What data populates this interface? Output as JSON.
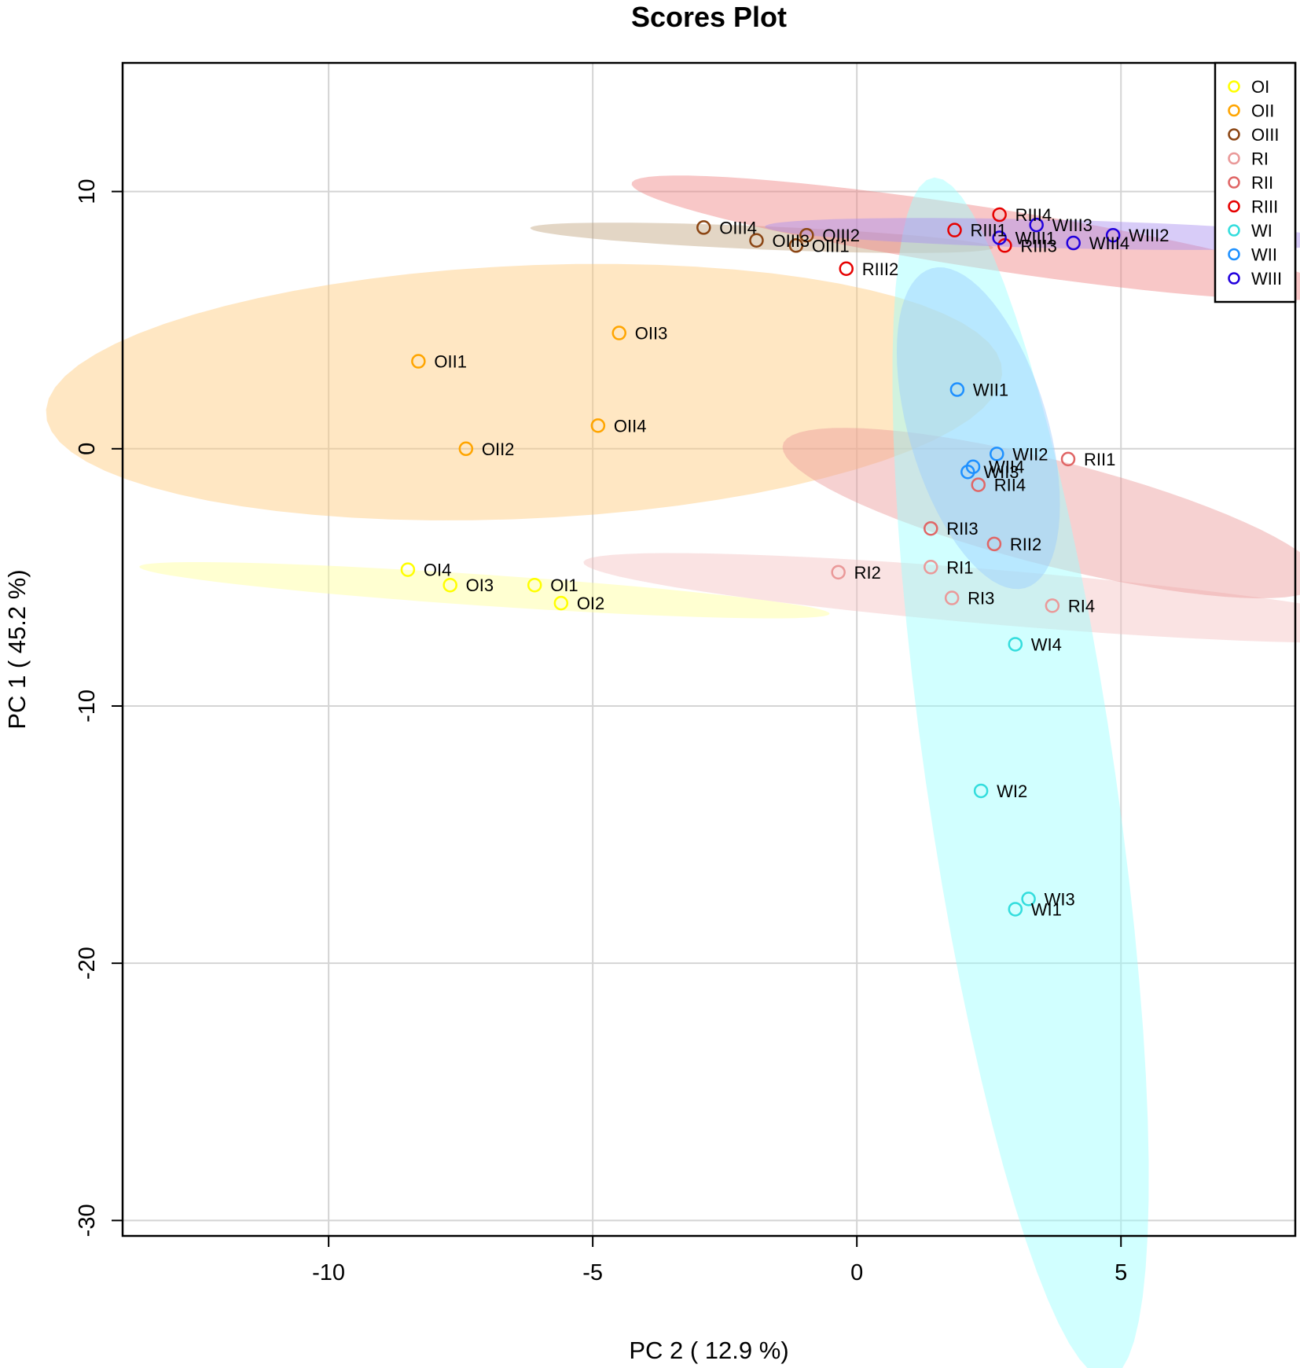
{
  "chart_data": {
    "type": "scatter",
    "title": "Scores Plot",
    "xlabel": "PC 2 ( 12.9 %)",
    "ylabel": "PC 1 ( 45.2 %)",
    "xlim": [
      -13.9,
      8.3
    ],
    "ylim": [
      -30.6,
      15.0
    ],
    "xticks": [
      -10,
      -5,
      0,
      5
    ],
    "xtick_labels": [
      "-10",
      "-5",
      "0",
      "5"
    ],
    "yticks": [
      -30,
      -20,
      -10,
      0,
      10
    ],
    "ytick_labels": [
      "-30",
      "-20",
      "-10",
      "0",
      "10"
    ],
    "grid": true,
    "legend_position": "top-right",
    "groups": [
      {
        "name": "OI",
        "color": "#ffff00",
        "fill": "#ffff99",
        "ellipse": {
          "cx": -7.05,
          "cy": -5.5,
          "rx": 6.6,
          "ry": 0.6,
          "angle_deg": -8
        },
        "points": [
          {
            "label": "OI1",
            "x": -6.1,
            "y": -5.3
          },
          {
            "label": "OI2",
            "x": -5.6,
            "y": -6.0
          },
          {
            "label": "OI3",
            "x": -7.7,
            "y": -5.3
          },
          {
            "label": "OI4",
            "x": -8.5,
            "y": -4.7
          }
        ]
      },
      {
        "name": "OII",
        "color": "#ffa500",
        "fill": "#ffc97a",
        "ellipse": {
          "cx": -6.3,
          "cy": 2.2,
          "rx": 9.1,
          "ry": 4.9,
          "angle_deg": 7
        },
        "points": [
          {
            "label": "OII1",
            "x": -8.3,
            "y": 3.4
          },
          {
            "label": "OII2",
            "x": -7.4,
            "y": 0.0
          },
          {
            "label": "OII3",
            "x": -4.5,
            "y": 4.5
          },
          {
            "label": "OII4",
            "x": -4.9,
            "y": 0.9
          }
        ]
      },
      {
        "name": "OIII",
        "color": "#8b4513",
        "fill": "#c2a47e",
        "ellipse": {
          "cx": -1.8,
          "cy": 8.2,
          "rx": 4.4,
          "ry": 0.45,
          "angle_deg": -5
        },
        "points": [
          {
            "label": "OIII1",
            "x": -1.15,
            "y": 7.9
          },
          {
            "label": "OIII2",
            "x": -0.95,
            "y": 8.3
          },
          {
            "label": "OIII3",
            "x": -1.9,
            "y": 8.1
          },
          {
            "label": "OIII4",
            "x": -2.9,
            "y": 8.6
          }
        ]
      },
      {
        "name": "RI",
        "color": "#ea9999",
        "fill": "#f3c1c1",
        "ellipse": {
          "cx": 2.8,
          "cy": -5.8,
          "rx": 8.1,
          "ry": 1.05,
          "angle_deg": -10
        },
        "points": [
          {
            "label": "RI1",
            "x": 1.4,
            "y": -4.6
          },
          {
            "label": "RI2",
            "x": -0.35,
            "y": -4.8
          },
          {
            "label": "RI3",
            "x": 1.8,
            "y": -5.8
          },
          {
            "label": "RI4",
            "x": 3.7,
            "y": -6.1
          }
        ]
      },
      {
        "name": "RII",
        "color": "#e06666",
        "fill": "#eb9898",
        "ellipse": {
          "cx": 3.7,
          "cy": -2.5,
          "rx": 5.8,
          "ry": 1.85,
          "angle_deg": -30
        },
        "points": [
          {
            "label": "RII1",
            "x": 4.0,
            "y": -0.4
          },
          {
            "label": "RII2",
            "x": 2.6,
            "y": -3.7
          },
          {
            "label": "RII3",
            "x": 1.4,
            "y": -3.1
          },
          {
            "label": "RII4",
            "x": 2.3,
            "y": -1.4
          }
        ]
      },
      {
        "name": "RIII",
        "color": "#e60000",
        "fill": "#f08282",
        "ellipse": {
          "cx": 2.4,
          "cy": 8.2,
          "rx": 7.0,
          "ry": 1.15,
          "angle_deg": -18
        },
        "points": [
          {
            "label": "RIII1",
            "x": 1.85,
            "y": 8.5
          },
          {
            "label": "RIII2",
            "x": -0.2,
            "y": 7.0
          },
          {
            "label": "RIII3",
            "x": 2.8,
            "y": 7.9
          },
          {
            "label": "RIII4",
            "x": 2.7,
            "y": 9.1
          }
        ]
      },
      {
        "name": "WI",
        "color": "#33dddd",
        "fill": "#99ffff",
        "ellipse": {
          "cx": 3.1,
          "cy": -12.8,
          "rx": 23.4,
          "ry": 1.8,
          "angle_deg": -86
        },
        "points": [
          {
            "label": "WI1",
            "x": 3.0,
            "y": -17.9
          },
          {
            "label": "WI2",
            "x": 2.35,
            "y": -13.3
          },
          {
            "label": "WI3",
            "x": 3.25,
            "y": -17.5
          },
          {
            "label": "WI4",
            "x": 3.0,
            "y": -7.6
          }
        ]
      },
      {
        "name": "WII",
        "color": "#1e90ff",
        "fill": "#99ccff",
        "ellipse": {
          "cx": 2.3,
          "cy": 0.8,
          "rx": 6.3,
          "ry": 1.35,
          "angle_deg": -83
        },
        "points": [
          {
            "label": "WII1",
            "x": 1.9,
            "y": 2.3
          },
          {
            "label": "WII2",
            "x": 2.65,
            "y": -0.2
          },
          {
            "label": "WII3",
            "x": 2.1,
            "y": -0.9
          },
          {
            "label": "WII4",
            "x": 2.2,
            "y": -0.7
          }
        ]
      },
      {
        "name": "WIII",
        "color": "#2200dd",
        "fill": "#a88ff0",
        "ellipse": {
          "cx": 3.75,
          "cy": 8.35,
          "rx": 5.5,
          "ry": 0.55,
          "angle_deg": -3
        },
        "points": [
          {
            "label": "WIII1",
            "x": 2.7,
            "y": 8.2
          },
          {
            "label": "WIII2",
            "x": 4.85,
            "y": 8.3
          },
          {
            "label": "WIII3",
            "x": 3.4,
            "y": 8.7
          },
          {
            "label": "WIII4",
            "x": 4.1,
            "y": 8.0
          }
        ]
      }
    ]
  }
}
